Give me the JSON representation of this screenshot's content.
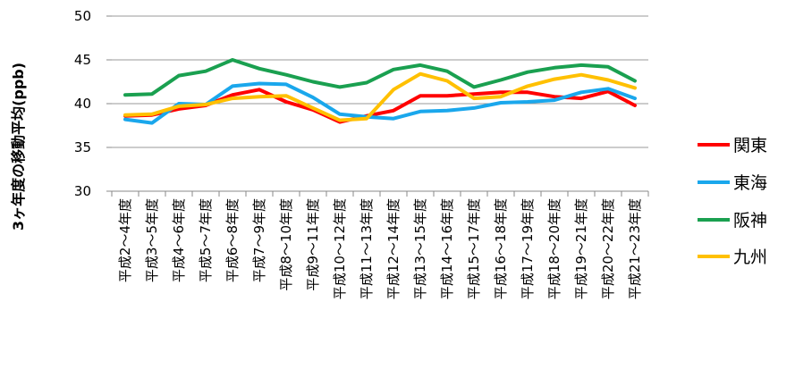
{
  "chart_data": {
    "type": "line",
    "title": "",
    "xlabel": "",
    "ylabel": "3ヶ年度の移動平均(ppb)",
    "ylim": [
      30,
      50
    ],
    "yticks": [
      30,
      35,
      40,
      45,
      50
    ],
    "grid": true,
    "legend": "right",
    "categories": [
      "平成2～4年度",
      "平成3～5年度",
      "平成4～6年度",
      "平成5～7年度",
      "平成6～8年度",
      "平成7～9年度",
      "平成8～10年度",
      "平成9～11年度",
      "平成10～12年度",
      "平成11～13年度",
      "平成12～14年度",
      "平成13～15年度",
      "平成14～16年度",
      "平成15～17年度",
      "平成16～18年度",
      "平成17～19年度",
      "平成18～20年度",
      "平成19～21年度",
      "平成20～22年度",
      "平成21～23年度"
    ],
    "series": [
      {
        "name": "関東",
        "color": "#ff0000",
        "values": [
          38.6,
          38.7,
          39.4,
          39.8,
          41.0,
          41.6,
          40.2,
          39.3,
          37.9,
          38.6,
          39.2,
          40.9,
          40.9,
          41.1,
          41.3,
          41.3,
          40.8,
          40.6,
          41.4,
          39.8
        ]
      },
      {
        "name": "東海",
        "color": "#1aa7ec",
        "values": [
          38.2,
          37.8,
          40.0,
          39.9,
          42.0,
          42.3,
          42.2,
          40.7,
          38.8,
          38.5,
          38.3,
          39.1,
          39.2,
          39.5,
          40.1,
          40.2,
          40.4,
          41.3,
          41.7,
          40.6
        ]
      },
      {
        "name": "阪神",
        "color": "#1aa050",
        "values": [
          41.0,
          41.1,
          43.2,
          43.7,
          45.0,
          44.0,
          43.3,
          42.5,
          41.9,
          42.4,
          43.9,
          44.4,
          43.7,
          41.9,
          42.7,
          43.6,
          44.1,
          44.4,
          44.2,
          42.6
        ]
      },
      {
        "name": "九州",
        "color": "#ffc000",
        "values": [
          38.7,
          38.8,
          39.7,
          39.9,
          40.6,
          40.8,
          40.9,
          39.5,
          38.1,
          38.3,
          41.6,
          43.4,
          42.6,
          40.6,
          40.8,
          42.0,
          42.8,
          43.3,
          42.7,
          41.8
        ]
      }
    ]
  }
}
